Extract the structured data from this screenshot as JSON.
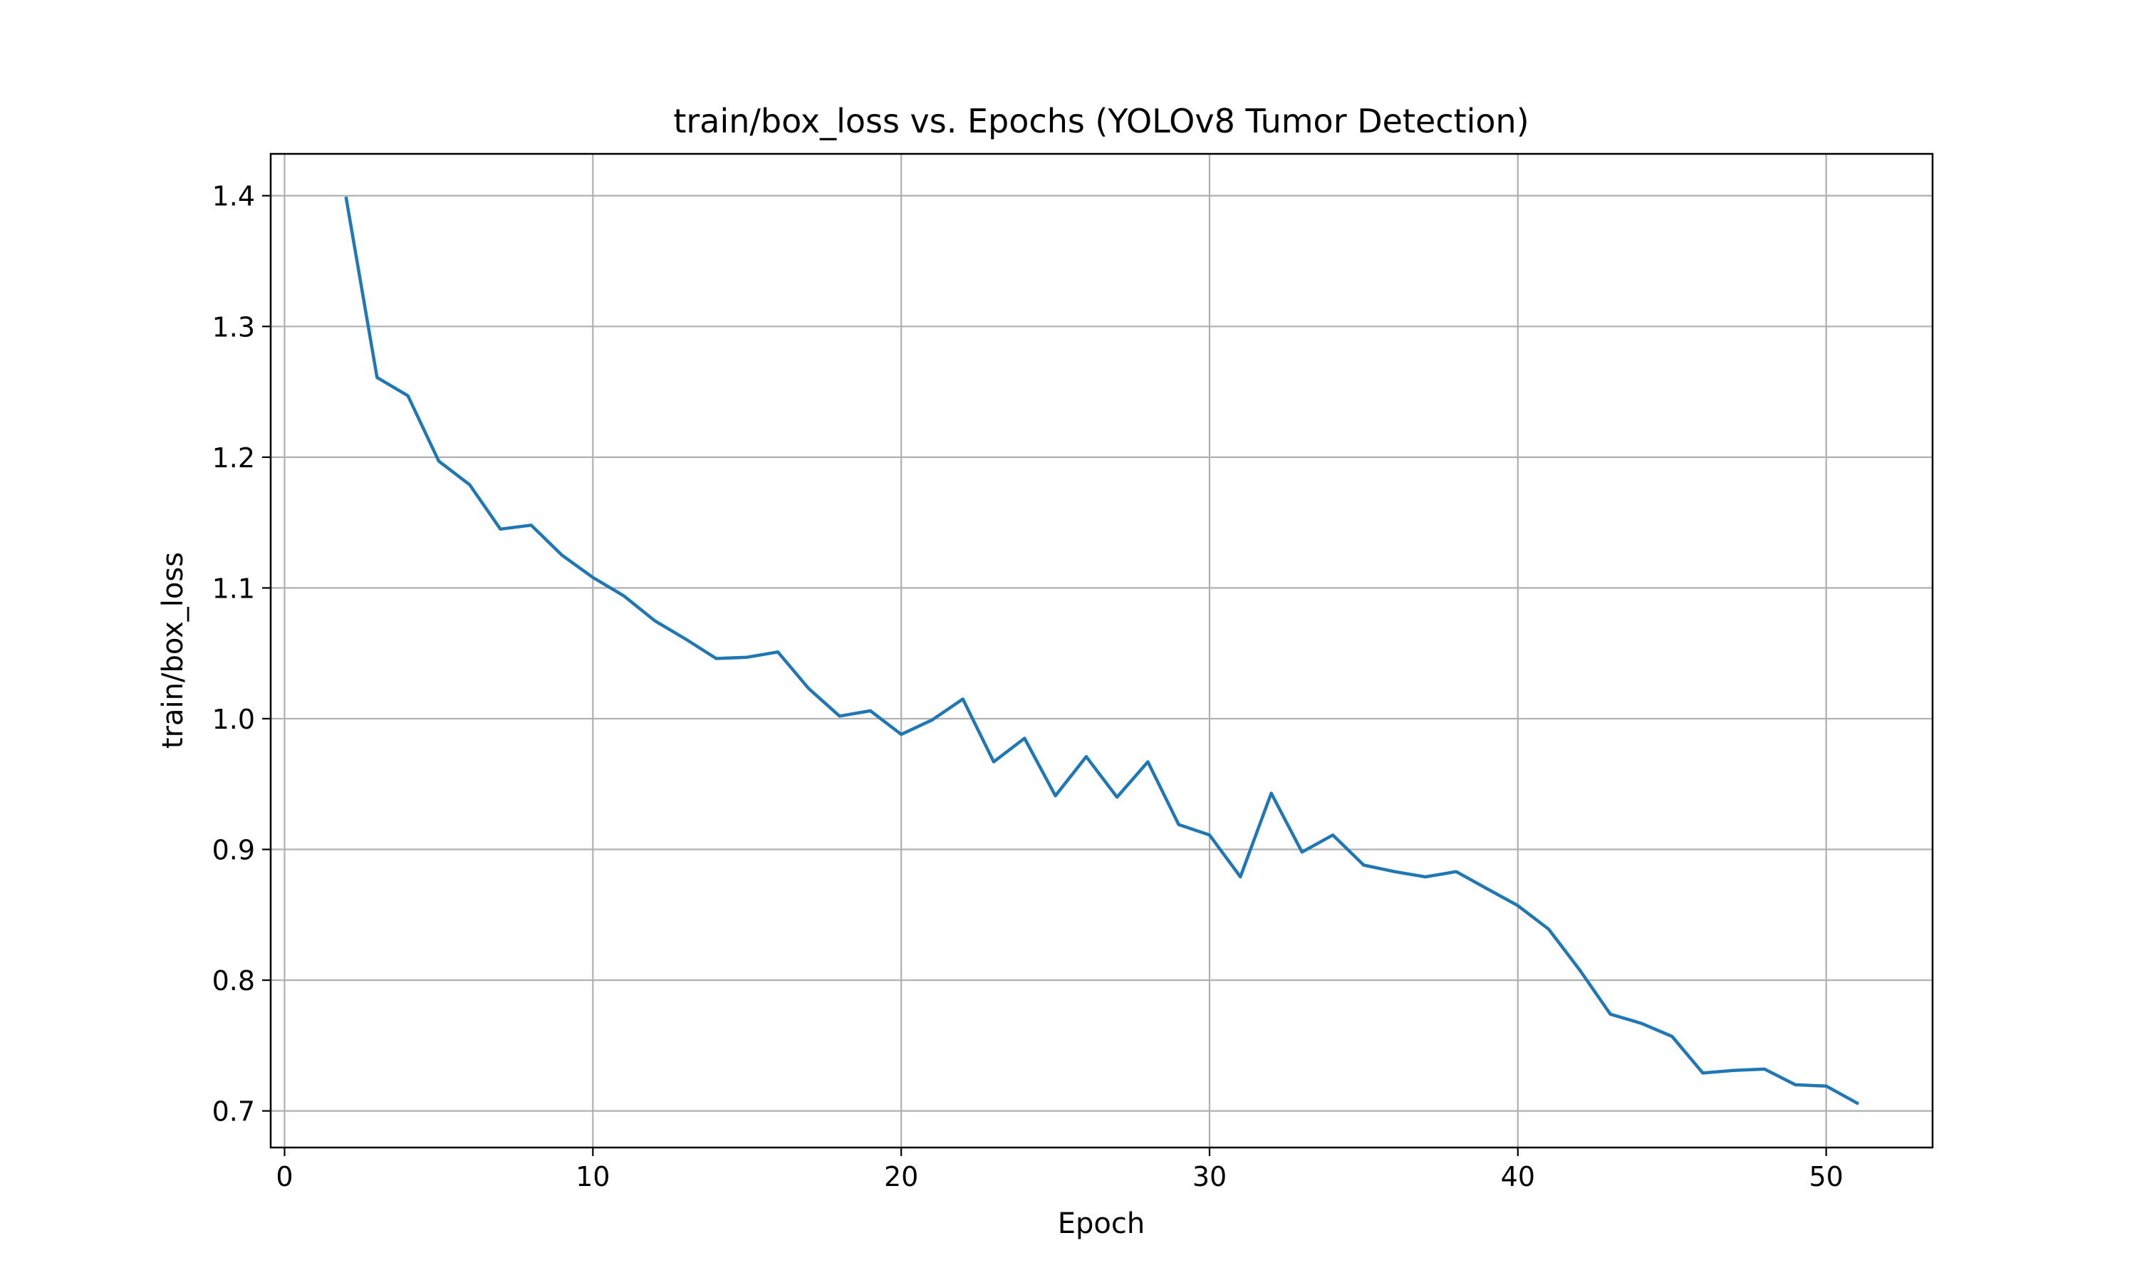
{
  "chart_data": {
    "type": "line",
    "title": "train/box_loss vs. Epochs (YOLOv8 Tumor Detection)",
    "xlabel": "Epoch",
    "ylabel": "train/box_loss",
    "xlim": [
      -0.45,
      53.45
    ],
    "ylim": [
      0.672,
      1.432
    ],
    "xticks": [
      0,
      10,
      20,
      30,
      40,
      50
    ],
    "yticks": [
      0.7,
      0.8,
      0.9,
      1.0,
      1.1,
      1.2,
      1.3,
      1.4
    ],
    "xtick_labels": [
      "0",
      "10",
      "20",
      "30",
      "40",
      "50"
    ],
    "ytick_labels": [
      "0.7",
      "0.8",
      "0.9",
      "1.0",
      "1.1",
      "1.2",
      "1.3",
      "1.4"
    ],
    "grid": true,
    "legend": "none",
    "color": "#1f77b4",
    "series": [
      {
        "x": [
          2,
          3,
          4,
          5,
          6,
          7,
          8,
          9,
          10,
          11,
          12,
          13,
          14,
          15,
          16,
          17,
          18,
          19,
          20,
          21,
          22,
          23,
          24,
          25,
          26,
          27,
          28,
          29,
          30,
          31,
          32,
          33,
          34,
          35,
          36,
          37,
          38,
          39,
          40,
          41,
          42,
          43,
          44,
          45,
          46,
          47,
          48,
          49,
          50,
          51
        ],
        "values": [
          1.398,
          1.261,
          1.247,
          1.197,
          1.179,
          1.145,
          1.148,
          1.125,
          1.108,
          1.094,
          1.075,
          1.061,
          1.046,
          1.047,
          1.051,
          1.023,
          1.002,
          1.006,
          0.988,
          0.999,
          1.015,
          0.967,
          0.985,
          0.941,
          0.971,
          0.94,
          0.967,
          0.919,
          0.911,
          0.879,
          0.943,
          0.898,
          0.911,
          0.888,
          0.883,
          0.879,
          0.883,
          0.87,
          0.857,
          0.839,
          0.808,
          0.774,
          0.767,
          0.757,
          0.729,
          0.731,
          0.732,
          0.72,
          0.719,
          0.706
        ]
      }
    ]
  }
}
